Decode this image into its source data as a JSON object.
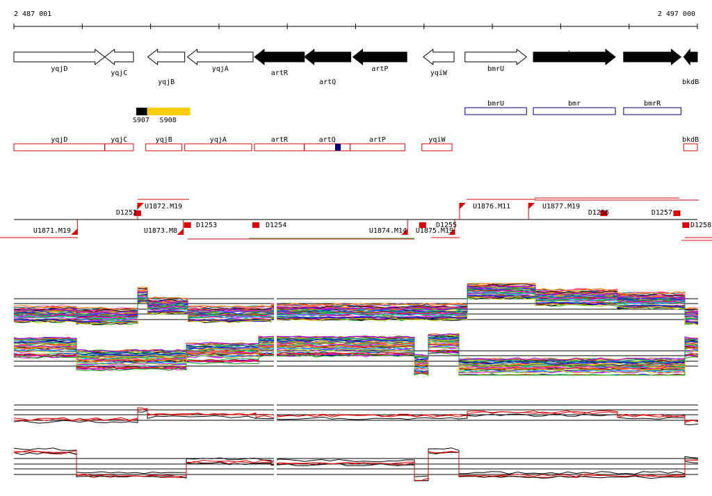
{
  "coordinates": {
    "start": "2 487 001",
    "end": "2 497 000"
  },
  "genes": [
    {
      "name": "yqjD",
      "strand": "+",
      "filled": false,
      "start": 2487001,
      "end": 2488330
    },
    {
      "name": "yqjC",
      "strand": "-",
      "filled": false,
      "start": 2488330,
      "end": 2488750
    },
    {
      "name": "yqjB",
      "strand": "-",
      "filled": false,
      "start": 2488960,
      "end": 2489500
    },
    {
      "name": "yqjA",
      "strand": "-",
      "filled": false,
      "start": 2489540,
      "end": 2490500
    },
    {
      "name": "artR",
      "strand": "-",
      "filled": true,
      "start": 2490520,
      "end": 2491250
    },
    {
      "name": "artQ",
      "strand": "-",
      "filled": true,
      "start": 2491250,
      "end": 2491930
    },
    {
      "name": "artP",
      "strand": "-",
      "filled": true,
      "start": 2491960,
      "end": 2492750
    },
    {
      "name": "yqiW",
      "strand": "-",
      "filled": false,
      "start": 2492990,
      "end": 2493440
    },
    {
      "name": "bmrU",
      "strand": "+",
      "filled": false,
      "start": 2493600,
      "end": 2494500
    },
    {
      "name": "bmr",
      "strand": "+",
      "filled": true,
      "start": 2494600,
      "end": 2495800
    },
    {
      "name": "bmrR",
      "strand": "+",
      "filled": true,
      "start": 2495920,
      "end": 2496760
    },
    {
      "name": "bkdB",
      "strand": "-",
      "filled": true,
      "start": 2496800,
      "end": 2497000
    }
  ],
  "srna_boxes": [
    {
      "name": "S907",
      "color": "#000000",
      "start": 2488790,
      "end": 2488950
    },
    {
      "name": "S908",
      "color": "#ffcc00",
      "start": 2488950,
      "end": 2489580
    }
  ],
  "blue_boxes": [
    {
      "name": "bmrU",
      "start": 2493600,
      "end": 2494500
    },
    {
      "name": "bmr",
      "start": 2494600,
      "end": 2495800
    },
    {
      "name": "bmrR",
      "start": 2495920,
      "end": 2496760
    }
  ],
  "red_boxes": [
    {
      "name": "yqjD",
      "start": 2487001,
      "end": 2488330
    },
    {
      "name": "yqjC",
      "start": 2488330,
      "end": 2488750
    },
    {
      "name": "yqjB",
      "start": 2488930,
      "end": 2489460
    },
    {
      "name": "yqjA",
      "start": 2489500,
      "end": 2490480
    },
    {
      "name": "artR",
      "start": 2490520,
      "end": 2491250
    },
    {
      "name": "artQ",
      "start": 2491250,
      "end": 2491920
    },
    {
      "name": "artP",
      "start": 2491920,
      "end": 2492720
    },
    {
      "name": "yqiW",
      "start": 2492970,
      "end": 2493410
    },
    {
      "name": "bkdB",
      "start": 2496800,
      "end": 2497000
    }
  ],
  "blue_marker": {
    "position": 2491700
  },
  "upstream_features": [
    {
      "name": "U1872.M19",
      "pos": 2488810,
      "kind": "tss-up"
    },
    {
      "name": "D1252",
      "pos": 2488810,
      "kind": "term-up"
    },
    {
      "name": "U1876.M11",
      "pos": 2493520,
      "kind": "tss-up"
    },
    {
      "name": "U1877.M19",
      "pos": 2494530,
      "kind": "tss-up"
    },
    {
      "name": "D1256",
      "pos": 2495630,
      "kind": "term-up"
    },
    {
      "name": "D1257",
      "pos": 2496700,
      "kind": "term-up"
    }
  ],
  "downstream_features": [
    {
      "name": "U1871.M19",
      "pos": 2487930,
      "kind": "tss-down"
    },
    {
      "name": "U1873.M8",
      "pos": 2489480,
      "kind": "tss-down"
    },
    {
      "name": "D1253",
      "pos": 2489540,
      "kind": "term-down"
    },
    {
      "name": "D1254",
      "pos": 2490540,
      "kind": "term-down"
    },
    {
      "name": "U1874.M14",
      "pos": 2492760,
      "kind": "tss-down"
    },
    {
      "name": "U1875.M19",
      "pos": 2493450,
      "kind": "tss-down"
    },
    {
      "name": "D1255",
      "pos": 2492980,
      "kind": "term-down"
    },
    {
      "name": "D1258",
      "pos": 2496830,
      "kind": "term-down"
    }
  ]
}
